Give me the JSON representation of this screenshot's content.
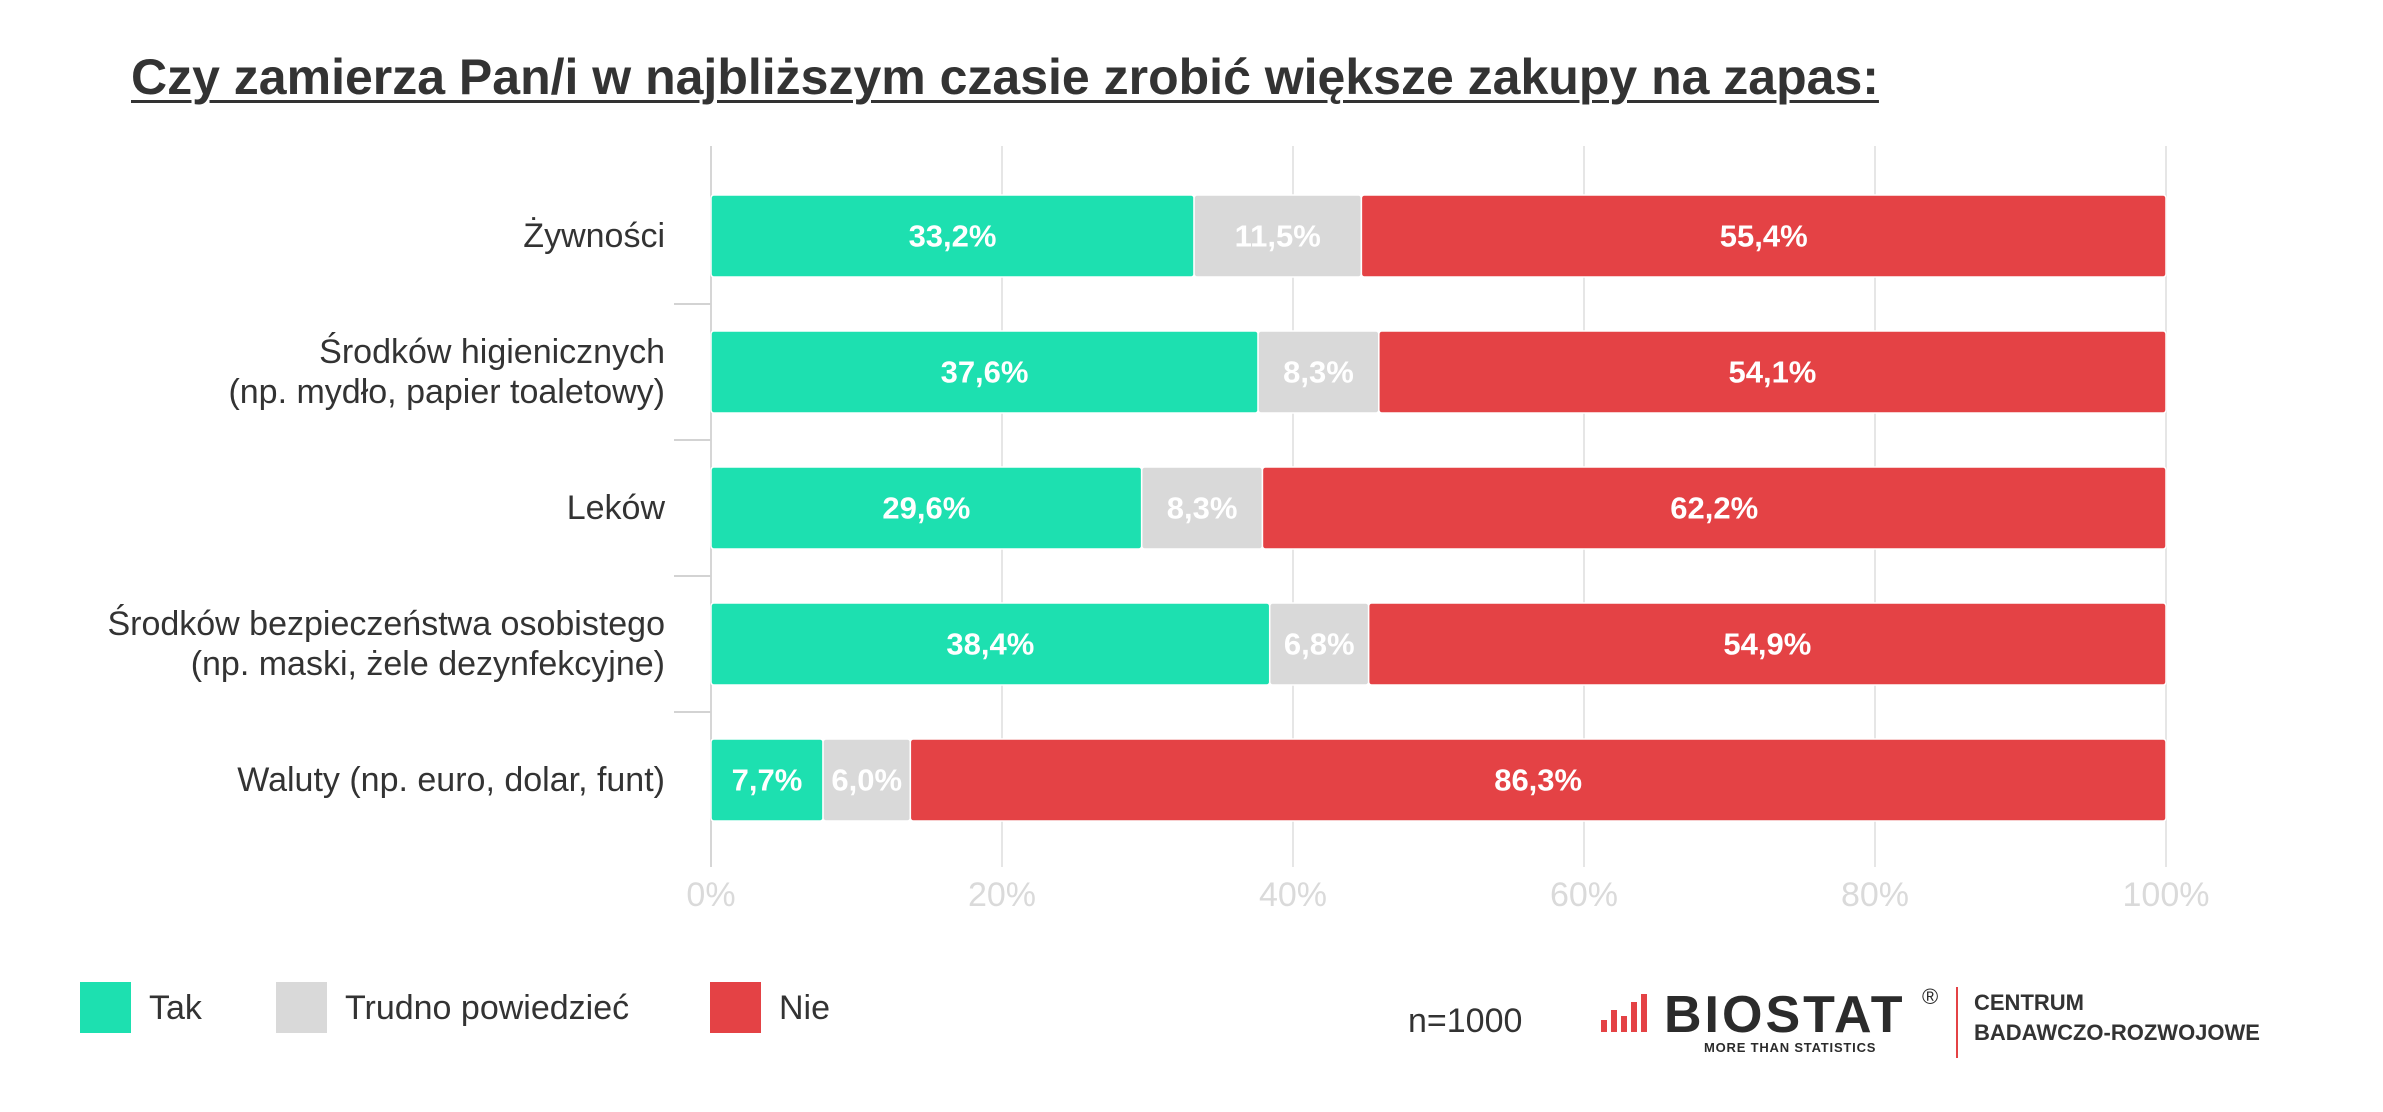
{
  "colors": {
    "text": "#333333",
    "grid": "#E6E6E6",
    "axis": "#D6D6D6",
    "category_tick": "#D3D3D3",
    "tick_text": "#DADADA",
    "bar_label": "#FFFFFF",
    "brand_red": "#E44245"
  },
  "chart_data": {
    "type": "bar",
    "orientation": "horizontal",
    "stacked": true,
    "title": "Czy zamierza Pan/i w najbliższym czasie zrobić większe zakupy na zapas:",
    "categories": [
      [
        "Żywności"
      ],
      [
        "Środków higienicznych",
        "(np. mydło, papier toaletowy)"
      ],
      [
        "Leków"
      ],
      [
        "Środków bezpieczeństwa osobistego",
        "(np. maski, żele dezynfekcyjne)"
      ],
      [
        "Waluty (np. euro, dolar, funt)"
      ]
    ],
    "series": [
      {
        "name": "Tak",
        "color": "#1DE0B0",
        "values": [
          33.2,
          37.6,
          29.6,
          38.4,
          7.7
        ],
        "labels": [
          "33,2%",
          "37,6%",
          "29,6%",
          "38,4%",
          "7,7%"
        ]
      },
      {
        "name": "Trudno powiedzieć",
        "color": "#D9D9D9",
        "values": [
          11.5,
          8.3,
          8.3,
          6.8,
          6.0
        ],
        "labels": [
          "11,5%",
          "8,3%",
          "8,3%",
          "6,8%",
          "6,0%"
        ]
      },
      {
        "name": "Nie",
        "color": "#E44245",
        "values": [
          55.4,
          54.1,
          62.2,
          54.9,
          86.3
        ],
        "labels": [
          "55,4%",
          "54,1%",
          "62,2%",
          "54,9%",
          "86,3%"
        ]
      }
    ],
    "xlim": [
      0,
      100
    ],
    "xticks": [
      0,
      20,
      40,
      60,
      80,
      100
    ],
    "xtick_labels": [
      "0%",
      "20%",
      "40%",
      "60%",
      "80%",
      "100%"
    ],
    "grid": true,
    "legend": "bottom-left"
  },
  "footer": {
    "sample_size": "n=1000"
  },
  "logo": {
    "icon": "bar-chart-icon",
    "name": "BIOSTAT",
    "registered_mark": "®",
    "tagline": "MORE THAN STATISTICS",
    "unit_line1": "CENTRUM",
    "unit_line2": "BADAWCZO-ROZWOJOWE"
  }
}
